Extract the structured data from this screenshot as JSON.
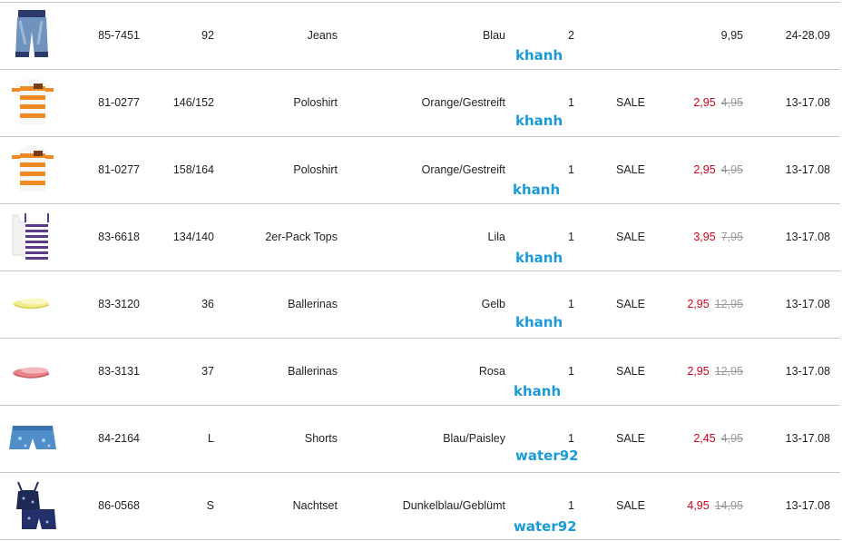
{
  "rows": [
    {
      "art": "85-7451",
      "size": "92",
      "name": "Jeans",
      "color": "Blau",
      "qty": "2",
      "sale": "",
      "price": "9,95",
      "old": "",
      "date": "24-28.09",
      "watermark": "khanh",
      "thumb": "jeans-thumbnail"
    },
    {
      "art": "81-0277",
      "size": "146/152",
      "name": "Poloshirt",
      "color": "Orange/Gestreift",
      "qty": "1",
      "sale": "SALE",
      "price": "2,95",
      "old": "4,95",
      "date": "13-17.08",
      "watermark": "khanh",
      "thumb": "poloshirt-thumbnail"
    },
    {
      "art": "81-0277",
      "size": "158/164",
      "name": "Poloshirt",
      "color": "Orange/Gestreift",
      "qty": "1",
      "sale": "SALE",
      "price": "2,95",
      "old": "4,95",
      "date": "13-17.08",
      "watermark": "khanh",
      "thumb": "poloshirt-thumbnail"
    },
    {
      "art": "83-6618",
      "size": "134/140",
      "name": "2er-Pack Tops",
      "color": "Lila",
      "qty": "1",
      "sale": "SALE",
      "price": "3,95",
      "old": "7,95",
      "date": "13-17.08",
      "watermark": "khanh",
      "thumb": "tops-thumbnail"
    },
    {
      "art": "83-3120",
      "size": "36",
      "name": "Ballerinas",
      "color": "Gelb",
      "qty": "1",
      "sale": "SALE",
      "price": "2,95",
      "old": "12,95",
      "date": "13-17.08",
      "watermark": "khanh",
      "thumb": "yellow-ballerinas-thumbnail"
    },
    {
      "art": "83-3131",
      "size": "37",
      "name": "Ballerinas",
      "color": "Rosa",
      "qty": "1",
      "sale": "SALE",
      "price": "2,95",
      "old": "12,95",
      "date": "13-17.08",
      "watermark": "khanh",
      "thumb": "pink-ballerinas-thumbnail"
    },
    {
      "art": "84-2164",
      "size": "L",
      "name": "Shorts",
      "color": "Blau/Paisley",
      "qty": "1",
      "sale": "SALE",
      "price": "2,45",
      "old": "4,95",
      "date": "13-17.08",
      "watermark": "water92",
      "thumb": "shorts-thumbnail"
    },
    {
      "art": "86-0568",
      "size": "S",
      "name": "Nachtset",
      "color": "Dunkelblau/Geblümt",
      "qty": "1",
      "sale": "SALE",
      "price": "4,95",
      "old": "14,95",
      "date": "13-17.08",
      "watermark": "water92",
      "thumb": "nightwear-thumbnail"
    }
  ],
  "colors": {
    "sale_price": "#d0021b",
    "old_price": "#9a9a9a",
    "watermark": "#1a9bd7",
    "divider": "#c8c8c8"
  }
}
